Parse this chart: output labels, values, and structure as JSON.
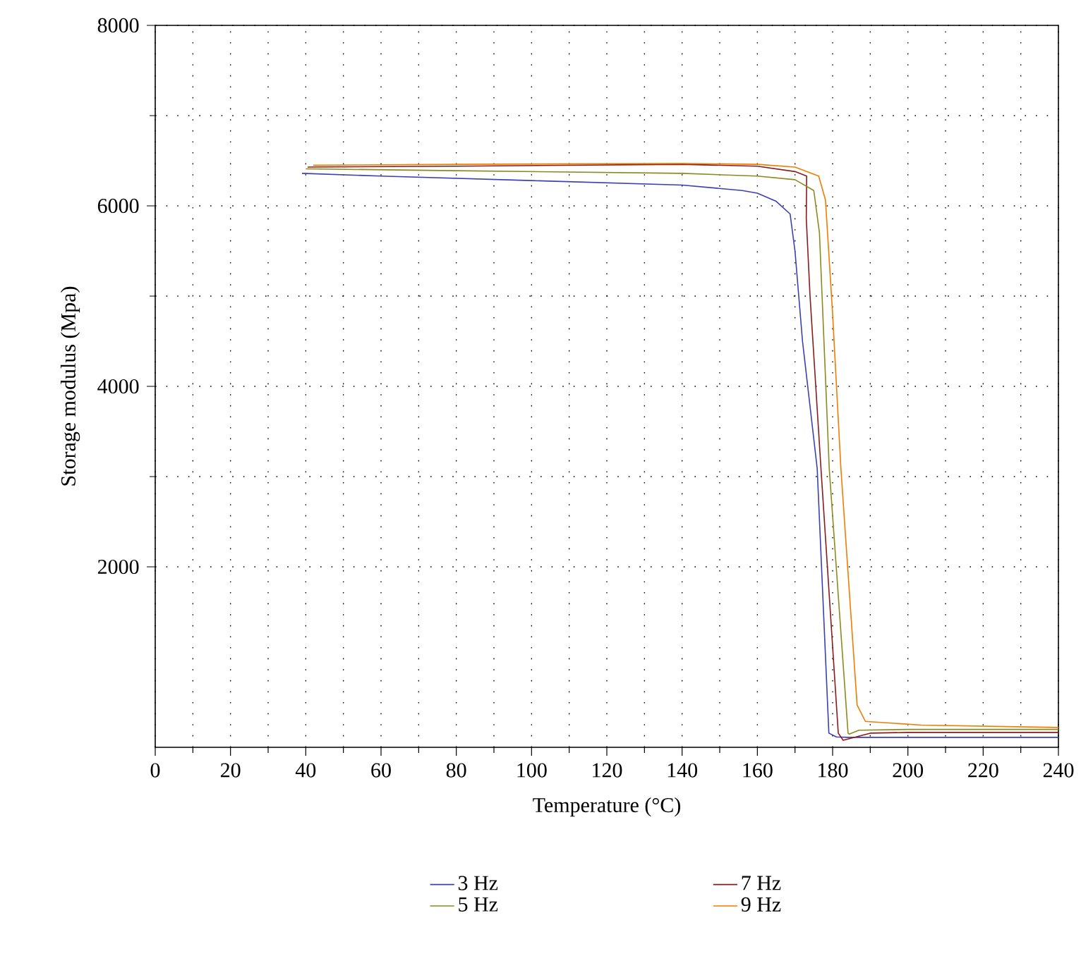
{
  "chart_data": {
    "type": "line",
    "xlabel": "Temperature (°C)",
    "ylabel": "Storage modulus (Mpa)",
    "xlim": [
      0,
      240
    ],
    "ylim": [
      0,
      8000
    ],
    "xticks": [
      0,
      20,
      40,
      60,
      80,
      100,
      120,
      140,
      160,
      180,
      200,
      220,
      240
    ],
    "yticks": [
      2000,
      4000,
      6000,
      8000
    ],
    "grid": true,
    "legend": "bottom",
    "line_style": "solid",
    "marker": "none",
    "series": [
      {
        "name": "3 Hz",
        "color": "#3b3fb5",
        "x": [
          39,
          60,
          100,
          140,
          156,
          160,
          165,
          168.7,
          170,
          172,
          175.9,
          179,
          181,
          184,
          200,
          240
        ],
        "values": [
          6360,
          6330,
          6280,
          6230,
          6170,
          6140,
          6050,
          5910,
          5500,
          4500,
          3090,
          157,
          115,
          110,
          110,
          110
        ]
      },
      {
        "name": "5 Hz",
        "color": "#8a8a20",
        "x": [
          40,
          80,
          140,
          160,
          170,
          175,
          176.5,
          179.1,
          184.1,
          184.4,
          187,
          200,
          240
        ],
        "values": [
          6410,
          6390,
          6360,
          6330,
          6290,
          6170,
          5700,
          3090,
          157,
          146,
          190,
          198,
          198
        ]
      },
      {
        "name": "7 Hz",
        "color": "#8b1a1a",
        "x": [
          40.5,
          80,
          140,
          160,
          170,
          173.1,
          173,
          174,
          176.9,
          181.5,
          182.8,
          190,
          200,
          240
        ],
        "values": [
          6430,
          6440,
          6460,
          6440,
          6380,
          6330,
          5860,
          5000,
          3090,
          157,
          78,
          157,
          165,
          165
        ]
      },
      {
        "name": "9 Hz",
        "color": "#f07c00",
        "x": [
          42,
          80,
          140,
          160,
          170,
          176.3,
          178.1,
          180,
          182.2,
          186.5,
          188.7,
          203.6,
          240
        ],
        "values": [
          6450,
          6460,
          6470,
          6460,
          6430,
          6330,
          6065,
          4800,
          3090,
          470,
          287,
          246,
          220
        ]
      }
    ]
  }
}
